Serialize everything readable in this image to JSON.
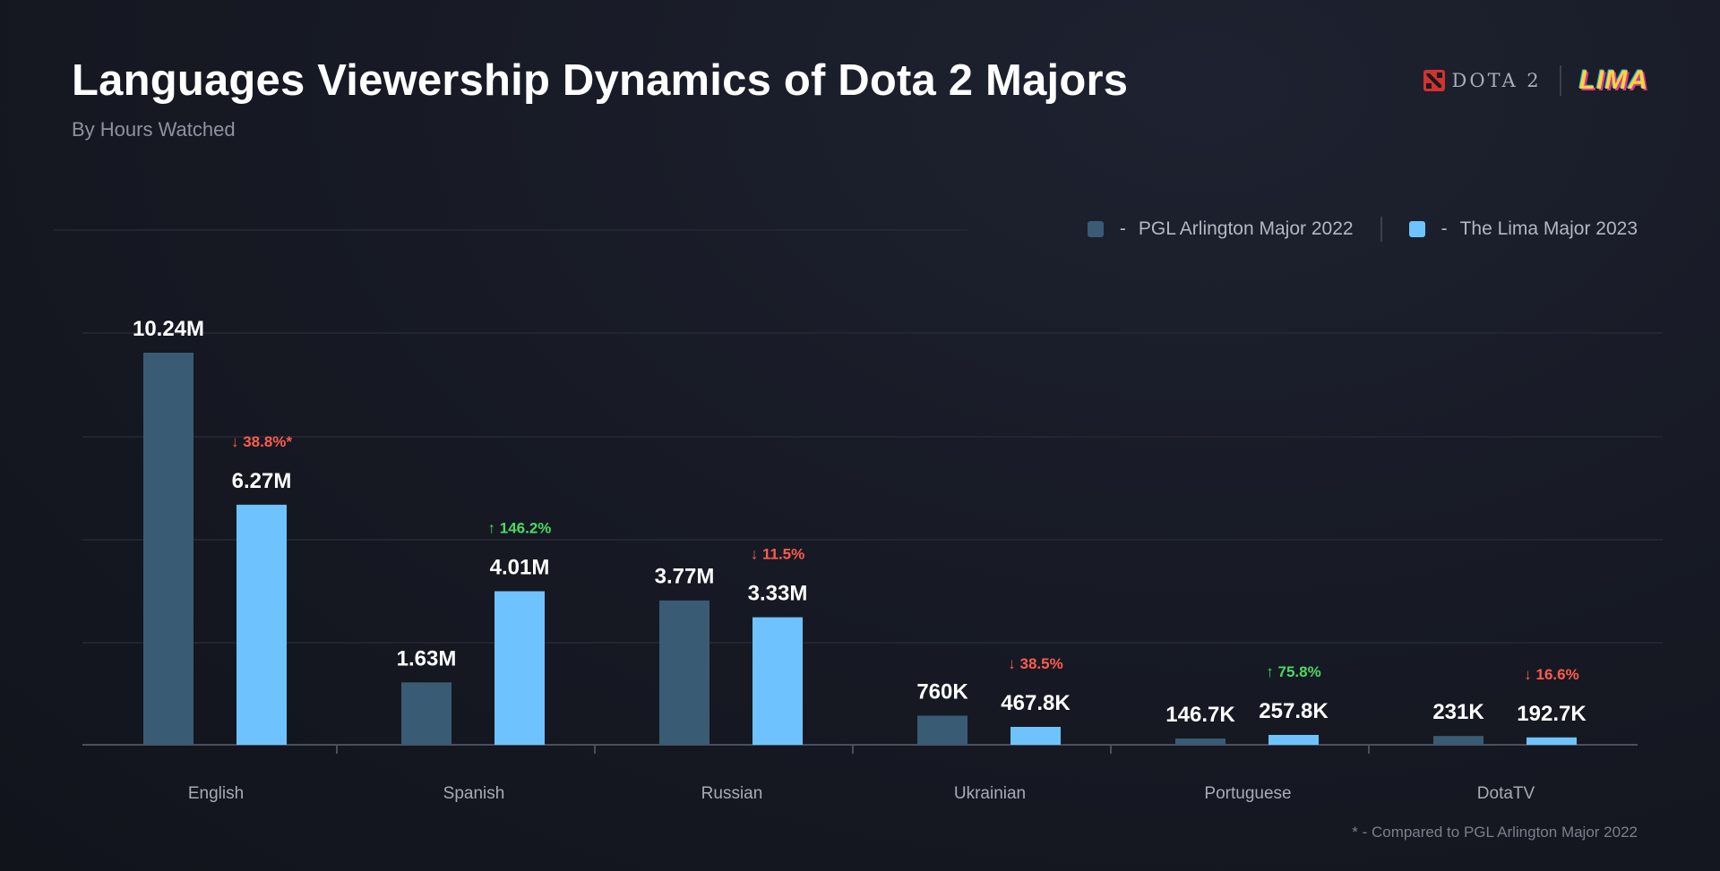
{
  "header": {
    "title": "Languages Viewership Dynamics of Dota 2 Majors",
    "subtitle": "By Hours Watched",
    "logo_dota": "DOTA 2",
    "logo_lima": "LIMA"
  },
  "legend": {
    "series1": "PGL Arlington Major 2022",
    "series2": "The Lima Major 2023",
    "dash": "-"
  },
  "footnote": "* - Compared to PGL Arlington Major 2022",
  "colors": {
    "series1": "#3a5b74",
    "series2": "#6ec3ff",
    "up": "#4cd964",
    "down": "#ff5c4d",
    "grid": "#262a35",
    "axis": "#4a4f5c"
  },
  "chart_data": {
    "type": "bar",
    "categories": [
      "English",
      "Spanish",
      "Russian",
      "Ukrainian",
      "Portuguese",
      "DotaTV"
    ],
    "series": [
      {
        "name": "PGL Arlington Major 2022",
        "values": [
          10.24,
          1.63,
          3.77,
          0.76,
          0.1467,
          0.231
        ],
        "labels": [
          "10.24M",
          "1.63M",
          "3.77M",
          "760K",
          "146.7K",
          "231K"
        ]
      },
      {
        "name": "The Lima Major 2023",
        "values": [
          6.27,
          4.01,
          3.33,
          0.4678,
          0.2578,
          0.1927
        ],
        "labels": [
          "6.27M",
          "4.01M",
          "3.33M",
          "467.8K",
          "257.8K",
          "192.7K"
        ]
      }
    ],
    "changes": [
      {
        "text": "38.8%*",
        "dir": "down"
      },
      {
        "text": "146.2%",
        "dir": "up"
      },
      {
        "text": "11.5%",
        "dir": "down"
      },
      {
        "text": "38.5%",
        "dir": "down"
      },
      {
        "text": "75.8%",
        "dir": "up"
      },
      {
        "text": "16.6%",
        "dir": "down"
      }
    ],
    "unit": "M hours",
    "ylim": [
      0,
      10.24
    ],
    "grid": true,
    "legend_position": "top-right"
  }
}
